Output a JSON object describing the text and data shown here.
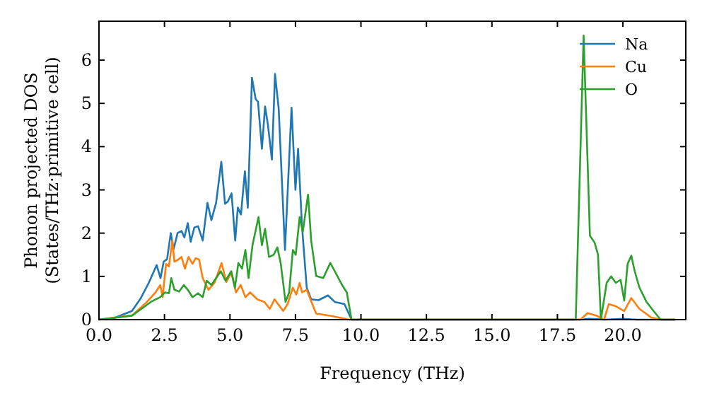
{
  "chart_data": {
    "type": "line",
    "xlabel": "Frequency (THz)",
    "ylabel": "Phonon projected DOS\n(States/THz·primitive cell)",
    "xlim": [
      0,
      22.4
    ],
    "ylim": [
      0,
      6.9
    ],
    "xticks": [
      {
        "value": 0,
        "label": "0.0"
      },
      {
        "value": 2.5,
        "label": "2.5"
      },
      {
        "value": 5,
        "label": "5.0"
      },
      {
        "value": 7.5,
        "label": "7.5"
      },
      {
        "value": 10,
        "label": "10.0"
      },
      {
        "value": 12.5,
        "label": "12.5"
      },
      {
        "value": 15,
        "label": "15.0"
      },
      {
        "value": 17.5,
        "label": "17.5"
      },
      {
        "value": 20,
        "label": "20.0"
      }
    ],
    "yticks": [
      0,
      1,
      2,
      3,
      4,
      5,
      6
    ],
    "legend": "top right",
    "grid": false,
    "marker": "none",
    "line_style": "solid",
    "series": [
      {
        "name": "Na",
        "color": "#1f77b4",
        "x": [
          0,
          0.54,
          1.26,
          1.6,
          1.9,
          2.2,
          2.35,
          2.47,
          2.6,
          2.74,
          2.85,
          3.0,
          3.15,
          3.26,
          3.39,
          3.5,
          3.64,
          3.78,
          3.96,
          4.14,
          4.29,
          4.47,
          4.67,
          4.81,
          4.92,
          5.06,
          5.2,
          5.3,
          5.42,
          5.57,
          5.68,
          5.84,
          5.98,
          6.07,
          6.22,
          6.34,
          6.45,
          6.6,
          6.72,
          6.86,
          7.1,
          7.35,
          7.5,
          7.6,
          7.75,
          7.93,
          8.1,
          8.38,
          8.74,
          9.0,
          9.37,
          9.64,
          18.4,
          18.7,
          19.0,
          19.3,
          20.0,
          20.5,
          22.0
        ],
        "values": [
          0,
          0.03,
          0.2,
          0.5,
          0.85,
          1.26,
          0.96,
          1.34,
          1.4,
          2.0,
          1.63,
          2.0,
          2.05,
          1.9,
          2.23,
          1.8,
          2.13,
          2.16,
          1.83,
          2.7,
          2.3,
          2.7,
          3.65,
          2.68,
          2.73,
          2.92,
          1.83,
          2.59,
          2.43,
          3.43,
          2.59,
          5.59,
          5.1,
          5.04,
          3.95,
          4.93,
          4.5,
          3.7,
          5.68,
          4.88,
          1.61,
          4.9,
          3.0,
          3.95,
          2.16,
          0.74,
          0.47,
          0.45,
          0.56,
          0.41,
          0.36,
          0,
          0,
          0.02,
          0.01,
          0,
          0.02,
          0,
          0
        ]
      },
      {
        "name": "Cu",
        "color": "#ff7f0e",
        "x": [
          0,
          1.26,
          1.8,
          2.16,
          2.34,
          2.43,
          2.56,
          2.67,
          2.8,
          2.88,
          3.03,
          3.15,
          3.28,
          3.42,
          3.57,
          3.69,
          3.82,
          3.96,
          4.18,
          4.41,
          4.68,
          4.86,
          5.05,
          5.23,
          5.41,
          5.59,
          5.77,
          6.04,
          6.31,
          6.52,
          6.7,
          7.03,
          7.2,
          7.4,
          7.53,
          7.66,
          7.75,
          7.93,
          8.07,
          8.29,
          8.83,
          9.55,
          18.38,
          18.65,
          19.0,
          19.28,
          19.46,
          19.73,
          19.9,
          20.05,
          20.32,
          20.63,
          21.08,
          21.44,
          22.0
        ],
        "values": [
          0,
          0.1,
          0.39,
          0.63,
          0.8,
          0.52,
          1.29,
          1.23,
          1.83,
          1.34,
          1.39,
          1.45,
          1.18,
          1.45,
          1.29,
          1.42,
          1.39,
          0.96,
          0.69,
          0.85,
          1.31,
          0.87,
          1.09,
          0.63,
          0.8,
          0.52,
          0.63,
          0.47,
          0.41,
          0.25,
          0.47,
          0.2,
          0.36,
          0.74,
          0.58,
          0.85,
          0.63,
          0.69,
          0.47,
          0.14,
          0.09,
          0,
          0,
          0.15,
          0.09,
          0,
          0.36,
          0.31,
          0.25,
          0.2,
          0.5,
          0.25,
          0.05,
          0,
          0
        ]
      },
      {
        "name": "O",
        "color": "#2ca02c",
        "x": [
          0,
          1.26,
          1.98,
          2.34,
          2.52,
          2.67,
          2.76,
          2.88,
          3.06,
          3.24,
          3.39,
          3.57,
          3.78,
          3.96,
          4.11,
          4.29,
          4.47,
          4.65,
          4.83,
          5.05,
          5.19,
          5.32,
          5.46,
          5.59,
          5.71,
          5.86,
          6.09,
          6.22,
          6.34,
          6.49,
          6.67,
          6.81,
          6.94,
          7.12,
          7.26,
          7.4,
          7.51,
          7.66,
          7.78,
          7.98,
          8.1,
          8.29,
          8.56,
          8.83,
          9.0,
          9.28,
          9.46,
          9.64,
          18.2,
          18.5,
          18.74,
          18.92,
          19.05,
          19.16,
          19.38,
          19.55,
          19.73,
          19.91,
          20.05,
          20.18,
          20.32,
          20.45,
          20.63,
          20.9,
          21.17,
          21.44,
          22.0
        ],
        "values": [
          0,
          0.09,
          0.41,
          0.52,
          0.63,
          0.61,
          0.96,
          0.69,
          0.65,
          0.8,
          0.69,
          0.52,
          0.61,
          0.52,
          0.9,
          0.8,
          0.96,
          1.12,
          0.9,
          1.12,
          0.74,
          1.31,
          1.18,
          1.61,
          0.96,
          1.72,
          2.37,
          1.72,
          2.1,
          1.45,
          1.5,
          1.67,
          1.29,
          0.41,
          0.63,
          1.61,
          1.5,
          2.37,
          2.03,
          2.89,
          1.83,
          1.01,
          0.96,
          1.31,
          1.12,
          0.8,
          0.63,
          0,
          0,
          6.57,
          1.94,
          1.78,
          1.5,
          0,
          0.85,
          1.0,
          0.85,
          0.92,
          0.44,
          1.29,
          1.48,
          1.12,
          0.74,
          0.41,
          0.2,
          0,
          0
        ]
      }
    ]
  }
}
